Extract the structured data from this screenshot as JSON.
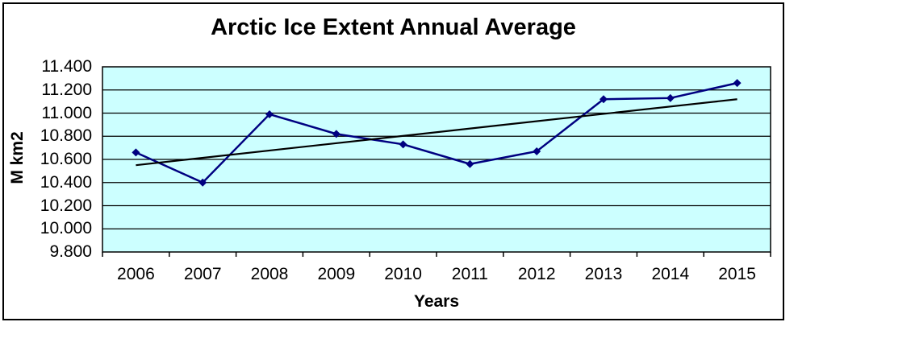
{
  "chart_data": {
    "type": "line",
    "title": "Arctic Ice Extent Annual Average",
    "xlabel": "Years",
    "ylabel": "M km2",
    "categories": [
      "2006",
      "2007",
      "2008",
      "2009",
      "2010",
      "2011",
      "2012",
      "2013",
      "2014",
      "2015"
    ],
    "values": [
      10.66,
      10.4,
      10.99,
      10.82,
      10.73,
      10.56,
      10.67,
      11.12,
      11.13,
      11.26
    ],
    "trendline": {
      "start": 10.55,
      "end": 11.12
    },
    "ylim": [
      9.8,
      11.4
    ],
    "ytick_step": 0.2,
    "ytick_labels": [
      "11.400",
      "11.200",
      "11.000",
      "10.800",
      "10.600",
      "10.400",
      "10.200",
      "10.000",
      "9.800"
    ],
    "grid": true,
    "legend": "none",
    "marker": "diamond",
    "colors": {
      "plot_background": "#CCFFFF",
      "series_line": "#000080",
      "trend_line": "#000000",
      "grid_line": "#000000",
      "frame_border": "#000000",
      "text": "#000000"
    }
  }
}
